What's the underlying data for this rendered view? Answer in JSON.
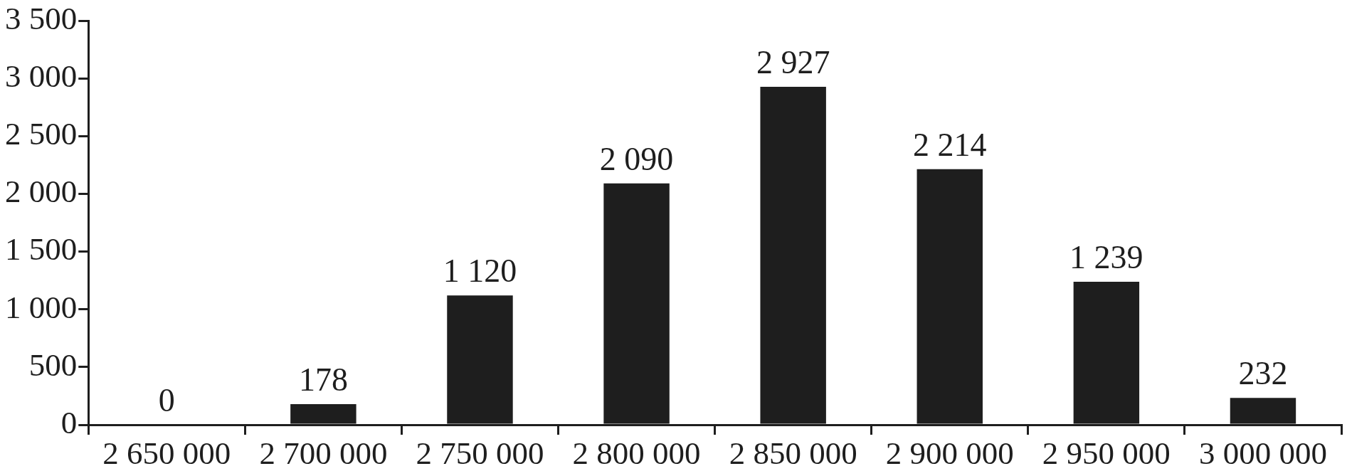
{
  "chart_data": {
    "type": "bar",
    "categories": [
      "2 650 000",
      "2 700 000",
      "2 750 000",
      "2 800 000",
      "2 850 000",
      "2 900 000",
      "2 950 000",
      "3 000 000"
    ],
    "values": [
      0,
      178,
      1120,
      2090,
      2927,
      2214,
      1239,
      232
    ],
    "value_labels": [
      "0",
      "178",
      "1 120",
      "2 090",
      "2 927",
      "2 214",
      "1 239",
      "232"
    ],
    "color": "#1e1e1e",
    "ylim": [
      0,
      3500
    ],
    "yticks": [
      {
        "value": 0,
        "label": "0"
      },
      {
        "value": 500,
        "label": "500"
      },
      {
        "value": 1000,
        "label": "1 000"
      },
      {
        "value": 1500,
        "label": "1 500"
      },
      {
        "value": 2000,
        "label": "2 000"
      },
      {
        "value": 2500,
        "label": "2 500"
      },
      {
        "value": 3000,
        "label": "3 000"
      },
      {
        "value": 3500,
        "label": "3 500"
      }
    ],
    "grid": false,
    "legend": false
  }
}
